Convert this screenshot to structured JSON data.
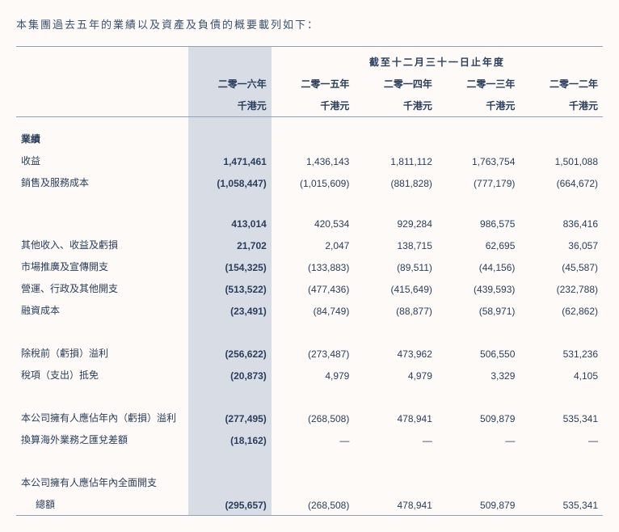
{
  "intro": "本集團過去五年的業績以及資產及負債的概要載列如下：",
  "header_title": "截至十二月三十一日止年度",
  "years": {
    "y2016": "二零一六年",
    "y2015": "二零一五年",
    "y2014": "二零一四年",
    "y2013": "二零一三年",
    "y2012": "二零一二年"
  },
  "unit": "千港元",
  "section_results": "業績",
  "rows": {
    "revenue": {
      "label": "收益",
      "v2016": "1,471,461",
      "v2015": "1,436,143",
      "v2014": "1,811,112",
      "v2013": "1,763,754",
      "v2012": "1,501,088"
    },
    "cost": {
      "label": "銷售及服務成本",
      "v2016": "(1,058,447)",
      "v2015": "(1,015,609)",
      "v2014": "(881,828)",
      "v2013": "(777,179)",
      "v2012": "(664,672)"
    },
    "gross": {
      "label": "",
      "v2016": "413,014",
      "v2015": "420,534",
      "v2014": "929,284",
      "v2013": "986,575",
      "v2012": "836,416"
    },
    "other_inc": {
      "label": "其他收入、收益及虧損",
      "v2016": "21,702",
      "v2015": "2,047",
      "v2014": "138,715",
      "v2013": "62,695",
      "v2012": "36,057"
    },
    "marketing": {
      "label": "市場推廣及宣傳開支",
      "v2016": "(154,325)",
      "v2015": "(133,883)",
      "v2014": "(89,511)",
      "v2013": "(44,156)",
      "v2012": "(45,587)"
    },
    "admin": {
      "label": "營運、行政及其他開支",
      "v2016": "(513,522)",
      "v2015": "(477,436)",
      "v2014": "(415,649)",
      "v2013": "(439,593)",
      "v2012": "(232,788)"
    },
    "finance": {
      "label": "融資成本",
      "v2016": "(23,491)",
      "v2015": "(84,749)",
      "v2014": "(88,877)",
      "v2013": "(58,971)",
      "v2012": "(62,862)"
    },
    "pbt": {
      "label": "除稅前（虧損）溢利",
      "v2016": "(256,622)",
      "v2015": "(273,487)",
      "v2014": "473,962",
      "v2013": "506,550",
      "v2012": "531,236"
    },
    "tax": {
      "label": "稅項（支出）抵免",
      "v2016": "(20,873)",
      "v2015": "4,979",
      "v2014": "4,979",
      "v2013": "3,329",
      "v2012": "4,105"
    },
    "attrib": {
      "label": "本公司擁有人應佔年內（虧損）溢利",
      "v2016": "(277,495)",
      "v2015": "(268,508)",
      "v2014": "478,941",
      "v2013": "509,879",
      "v2012": "535,341"
    },
    "fx": {
      "label": "換算海外業務之匯兌差額",
      "v2016": "(18,162)",
      "v2015": "—",
      "v2014": "—",
      "v2013": "—",
      "v2012": "—"
    },
    "total_comp_line1": "本公司擁有人應佔年內全面開支",
    "total_comp": {
      "label": "總額",
      "v2016": "(295,657)",
      "v2015": "(268,508)",
      "v2014": "478,941",
      "v2013": "509,879",
      "v2012": "535,341"
    }
  },
  "colors": {
    "text": "#2a3e5c",
    "highlight_bg": "#d8dce5",
    "border": "#90a0b8",
    "page_bg": "#fdfaf7"
  }
}
